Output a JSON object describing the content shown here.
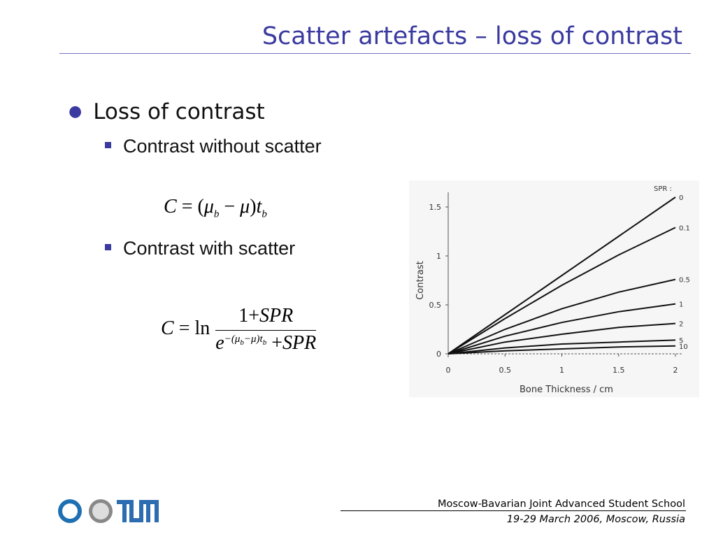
{
  "header": {
    "title": "Scatter artefacts – loss of contrast"
  },
  "bullets": {
    "level1": "Loss of contrast",
    "sub1": "Contrast without scatter",
    "sub2": "Contrast with scatter"
  },
  "formula_1": {
    "lhs": "C",
    "eq": "=",
    "open": "(",
    "mu_b": "μ",
    "sub_b": "b",
    "minus": "−",
    "mu": "μ",
    "close": ")",
    "t": "t",
    "sub_t": "b"
  },
  "formula_2": {
    "lhs": "C",
    "eq": "=",
    "ln": "ln",
    "num_one": "1",
    "num_plus": "+",
    "num_spr": "SPR",
    "den_e": "e",
    "exp_a": "−(μ",
    "exp_sub_b": "b",
    "exp_c": "−μ)t",
    "exp_sub_t": "b",
    "den_plus": "+",
    "den_spr": "SPR"
  },
  "footer": {
    "school": "Moscow-Bavarian Joint Advanced Student School",
    "date": "19-29 March 2006, Moscow, Russia"
  },
  "chart_data": {
    "type": "line",
    "x_label": "Bone Thickness / cm",
    "y_label": "Contrast",
    "legend_title": "SPR :",
    "x": [
      0,
      0.5,
      1,
      1.5,
      2
    ],
    "xlim": [
      0,
      2
    ],
    "xticks": [
      0,
      0.5,
      1,
      1.5,
      2
    ],
    "ylim": [
      0,
      1.65
    ],
    "yticks": [
      0,
      0.5,
      1,
      1.5
    ],
    "series": [
      {
        "name": "0",
        "color": "#111111",
        "values": [
          0,
          0.4,
          0.8,
          1.2,
          1.6
        ]
      },
      {
        "name": "0.1",
        "color": "#111111",
        "values": [
          0,
          0.36,
          0.7,
          1.01,
          1.29
        ]
      },
      {
        "name": "0.5",
        "color": "#111111",
        "values": [
          0,
          0.25,
          0.46,
          0.63,
          0.76
        ]
      },
      {
        "name": "1",
        "color": "#111111",
        "values": [
          0,
          0.18,
          0.32,
          0.43,
          0.51
        ]
      },
      {
        "name": "2",
        "color": "#111111",
        "values": [
          0,
          0.12,
          0.2,
          0.27,
          0.31
        ]
      },
      {
        "name": "5",
        "color": "#111111",
        "values": [
          0,
          0.06,
          0.1,
          0.12,
          0.14
        ]
      },
      {
        "name": "10",
        "color": "#111111",
        "values": [
          0,
          0.03,
          0.05,
          0.07,
          0.08
        ]
      }
    ]
  }
}
